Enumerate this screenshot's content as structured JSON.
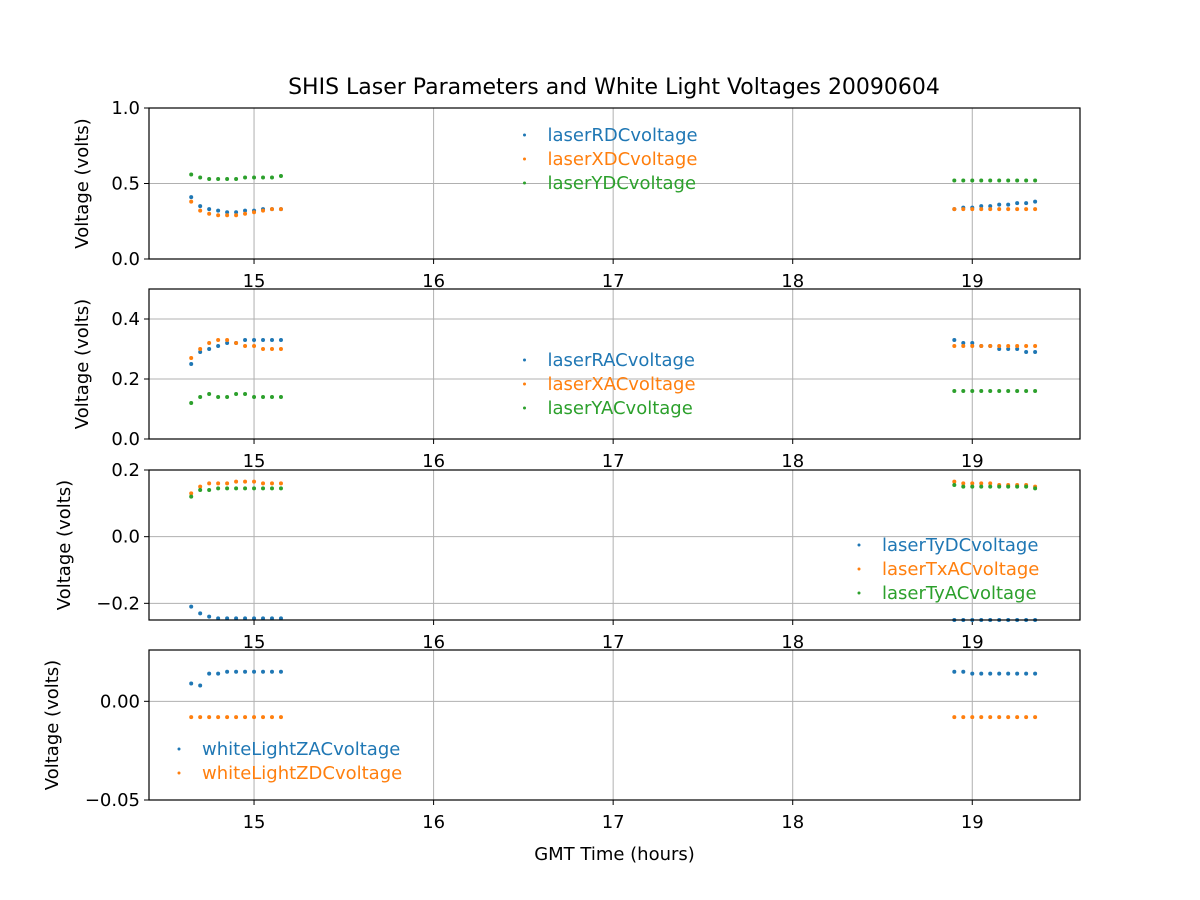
{
  "chart_data": [
    {
      "type": "scatter",
      "title": "SHIS Laser Parameters and White Light Voltages 20090604",
      "y_label": "Voltage (volts)",
      "x": [
        14.65,
        14.7,
        14.75,
        14.8,
        14.85,
        14.9,
        14.95,
        15.0,
        15.05,
        15.1,
        15.15,
        18.9,
        18.95,
        19.0,
        19.05,
        19.1,
        19.15,
        19.2,
        19.25,
        19.3,
        19.35
      ],
      "series": [
        {
          "name": "laserRDCvoltage",
          "color": "#1f77b4",
          "values": [
            0.41,
            0.35,
            0.33,
            0.32,
            0.31,
            0.31,
            0.32,
            0.32,
            0.33,
            0.33,
            0.33,
            0.33,
            0.34,
            0.34,
            0.35,
            0.35,
            0.36,
            0.36,
            0.37,
            0.37,
            0.38
          ]
        },
        {
          "name": "laserXDCvoltage",
          "color": "#ff7f0e",
          "values": [
            0.38,
            0.32,
            0.3,
            0.29,
            0.29,
            0.29,
            0.3,
            0.31,
            0.32,
            0.33,
            0.33,
            0.33,
            0.33,
            0.33,
            0.33,
            0.33,
            0.33,
            0.33,
            0.33,
            0.33,
            0.33
          ]
        },
        {
          "name": "laserYDCvoltage",
          "color": "#2ca02c",
          "values": [
            0.56,
            0.54,
            0.53,
            0.53,
            0.53,
            0.53,
            0.54,
            0.54,
            0.54,
            0.54,
            0.55,
            0.52,
            0.52,
            0.52,
            0.52,
            0.52,
            0.52,
            0.52,
            0.52,
            0.52,
            0.52
          ]
        }
      ],
      "xlim": [
        14.415,
        19.6
      ],
      "xticks": [
        15,
        16,
        17,
        18,
        19
      ],
      "ylim": [
        0,
        1
      ],
      "yticks": [
        {
          "value": 0,
          "label": "0.0"
        },
        {
          "value": 0.5,
          "label": "0.5"
        },
        {
          "value": 1,
          "label": "1.0"
        }
      ],
      "grid": true,
      "legend": "upper center"
    },
    {
      "type": "scatter",
      "y_label": "Voltage (volts)",
      "x": [
        14.65,
        14.7,
        14.75,
        14.8,
        14.85,
        14.9,
        14.95,
        15.0,
        15.05,
        15.1,
        15.15,
        18.9,
        18.95,
        19.0,
        19.05,
        19.1,
        19.15,
        19.2,
        19.25,
        19.3,
        19.35
      ],
      "series": [
        {
          "name": "laserRACvoltage",
          "color": "#1f77b4",
          "values": [
            0.25,
            0.29,
            0.3,
            0.31,
            0.32,
            0.32,
            0.33,
            0.33,
            0.33,
            0.33,
            0.33,
            0.33,
            0.32,
            0.32,
            0.31,
            0.31,
            0.3,
            0.3,
            0.3,
            0.29,
            0.29
          ]
        },
        {
          "name": "laserXACvoltage",
          "color": "#ff7f0e",
          "values": [
            0.27,
            0.3,
            0.32,
            0.33,
            0.33,
            0.32,
            0.31,
            0.31,
            0.3,
            0.3,
            0.3,
            0.31,
            0.31,
            0.31,
            0.31,
            0.31,
            0.31,
            0.31,
            0.31,
            0.31,
            0.31
          ]
        },
        {
          "name": "laserYACvoltage",
          "color": "#2ca02c",
          "values": [
            0.12,
            0.14,
            0.15,
            0.14,
            0.14,
            0.15,
            0.15,
            0.14,
            0.14,
            0.14,
            0.14,
            0.16,
            0.16,
            0.16,
            0.16,
            0.16,
            0.16,
            0.16,
            0.16,
            0.16,
            0.16
          ]
        }
      ],
      "xlim": [
        14.415,
        19.6
      ],
      "xticks": [
        15,
        16,
        17,
        18,
        19
      ],
      "ylim": [
        0,
        0.5
      ],
      "yticks": [
        {
          "value": 0,
          "label": "0.0"
        },
        {
          "value": 0.2,
          "label": "0.2"
        },
        {
          "value": 0.4,
          "label": "0.4"
        }
      ],
      "grid": true,
      "legend": "center"
    },
    {
      "type": "scatter",
      "y_label": "Voltage (volts)",
      "x": [
        14.65,
        14.7,
        14.75,
        14.8,
        14.85,
        14.9,
        14.95,
        15.0,
        15.05,
        15.1,
        15.15,
        18.9,
        18.95,
        19.0,
        19.05,
        19.1,
        19.15,
        19.2,
        19.25,
        19.3,
        19.35
      ],
      "series": [
        {
          "name": "laserTyDCvoltage",
          "color": "#1f77b4",
          "values": [
            -0.21,
            -0.23,
            -0.24,
            -0.245,
            -0.245,
            -0.245,
            -0.245,
            -0.245,
            -0.245,
            -0.245,
            -0.245,
            -0.25,
            -0.25,
            -0.25,
            -0.25,
            -0.25,
            -0.25,
            -0.25,
            -0.25,
            -0.25,
            -0.25
          ]
        },
        {
          "name": "laserTxACvoltage",
          "color": "#ff7f0e",
          "values": [
            0.13,
            0.15,
            0.16,
            0.16,
            0.16,
            0.165,
            0.165,
            0.165,
            0.16,
            0.16,
            0.16,
            0.165,
            0.16,
            0.16,
            0.16,
            0.16,
            0.155,
            0.155,
            0.155,
            0.155,
            0.15
          ]
        },
        {
          "name": "laserTyACvoltage",
          "color": "#2ca02c",
          "values": [
            0.12,
            0.14,
            0.14,
            0.145,
            0.145,
            0.145,
            0.145,
            0.145,
            0.145,
            0.145,
            0.145,
            0.155,
            0.15,
            0.15,
            0.15,
            0.15,
            0.15,
            0.15,
            0.15,
            0.15,
            0.145
          ]
        }
      ],
      "xlim": [
        14.415,
        19.6
      ],
      "xticks": [
        15,
        16,
        17,
        18,
        19
      ],
      "ylim": [
        -0.25,
        0.2
      ],
      "yticks": [
        {
          "value": -0.2,
          "label": "−0.2"
        },
        {
          "value": 0,
          "label": "0.0"
        },
        {
          "value": 0.2,
          "label": "0.2"
        }
      ],
      "grid": true,
      "legend": "lower right"
    },
    {
      "type": "scatter",
      "y_label": "Voltage (volts)",
      "x_label": "GMT Time (hours)",
      "x": [
        14.65,
        14.7,
        14.75,
        14.8,
        14.85,
        14.9,
        14.95,
        15.0,
        15.05,
        15.1,
        15.15,
        18.9,
        18.95,
        19.0,
        19.05,
        19.1,
        19.15,
        19.2,
        19.25,
        19.3,
        19.35
      ],
      "series": [
        {
          "name": "whiteLightZACvoltage",
          "color": "#1f77b4",
          "values": [
            0.009,
            0.008,
            0.014,
            0.014,
            0.015,
            0.015,
            0.015,
            0.015,
            0.015,
            0.015,
            0.015,
            0.015,
            0.015,
            0.014,
            0.014,
            0.014,
            0.014,
            0.014,
            0.014,
            0.014,
            0.014
          ]
        },
        {
          "name": "whiteLightZDCvoltage",
          "color": "#ff7f0e",
          "values": [
            -0.008,
            -0.008,
            -0.008,
            -0.008,
            -0.008,
            -0.008,
            -0.008,
            -0.008,
            -0.008,
            -0.008,
            -0.008,
            -0.008,
            -0.008,
            -0.008,
            -0.008,
            -0.008,
            -0.008,
            -0.008,
            -0.008,
            -0.008,
            -0.008
          ]
        }
      ],
      "xlim": [
        14.415,
        19.6
      ],
      "xticks": [
        15,
        16,
        17,
        18,
        19
      ],
      "ylim": [
        -0.05,
        0.026
      ],
      "yticks": [
        {
          "value": -0.05,
          "label": "−0.05"
        },
        {
          "value": 0,
          "label": "0.00"
        }
      ],
      "grid": true,
      "legend": "lower left"
    }
  ]
}
